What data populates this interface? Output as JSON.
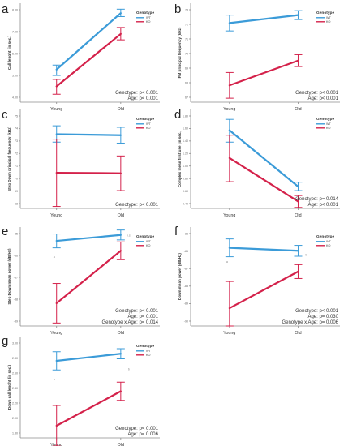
{
  "colors": {
    "WT": "#3b9bd8",
    "KO": "#d4214a"
  },
  "panels": [
    {
      "letter": "a",
      "ylabel": "Call lenght (in sec.)",
      "legend": {
        "title": "Genotype",
        "items": [
          "WT",
          "KO"
        ]
      },
      "stats": [
        "Genotype: p< 0.001",
        "Age: p< 0.001"
      ],
      "ticks": [
        "8.00",
        "7.00",
        "6.00",
        "5.00",
        "4.00"
      ],
      "sig": [],
      "chart_data": {
        "type": "line",
        "categories": [
          "Young",
          "Old"
        ],
        "ylim": [
          0,
          100
        ],
        "series": [
          {
            "name": "WT",
            "values": [
              33.0,
              90.0
            ],
            "err_low": [
              27.0,
              86.5
            ],
            "err_high": [
              37.5,
              94.0
            ]
          },
          {
            "name": "KO",
            "values": [
              16.0,
              69.0
            ],
            "err_low": [
              8.0,
              63.0
            ],
            "err_high": [
              23.0,
              75.5
            ]
          }
        ]
      }
    },
    {
      "letter": "b",
      "ylabel": "FM principal frequency (kHz)",
      "legend": {
        "title": "Genotype",
        "items": [
          "WT",
          "KO"
        ]
      },
      "stats": [
        "Genotype: p< 0.001",
        "Age: p< 0.001"
      ],
      "ticks": [
        "73",
        "72",
        "71",
        "70",
        "69",
        "68",
        "67"
      ],
      "sig": [],
      "chart_data": {
        "type": "line",
        "categories": [
          "Young",
          "Old"
        ],
        "ylim": [
          0,
          100
        ],
        "series": [
          {
            "name": "WT",
            "values": [
              80.0,
              88.0
            ],
            "err_low": [
              72.0,
              83.5
            ],
            "err_high": [
              88.0,
              92.5
            ]
          },
          {
            "name": "KO",
            "values": [
              17.0,
              42.0
            ],
            "err_low": [
              4.0,
              36.0
            ],
            "err_high": [
              30.0,
              48.0
            ]
          }
        ]
      }
    },
    {
      "letter": "c",
      "ylabel": "Step Down principal frequency (kHz)",
      "legend": {
        "title": "Genotype",
        "items": [
          "WT",
          "KO"
        ]
      },
      "stats": [
        "Genotype: p< 0.001"
      ],
      "ticks": [
        "75",
        "74",
        "73",
        "72",
        "71",
        "70",
        "69",
        "68"
      ],
      "sig": [],
      "chart_data": {
        "type": "line",
        "categories": [
          "Young",
          "Old"
        ],
        "ylim": [
          0,
          100
        ],
        "series": [
          {
            "name": "WT",
            "values": [
              75.0,
              74.0
            ],
            "err_low": [
              67.0,
              66.0
            ],
            "err_high": [
              83.5,
              82.0
            ]
          },
          {
            "name": "KO",
            "values": [
              36.0,
              35.5
            ],
            "err_low": [
              2.0,
              18.0
            ],
            "err_high": [
              70.0,
              53.0
            ]
          }
        ]
      }
    },
    {
      "letter": "d",
      "ylabel": "Complex mean first use (in sec.)",
      "legend": {
        "title": "Genotype",
        "items": [
          "WT",
          "KO"
        ]
      },
      "stats": [
        "Genotype: p= 0.014",
        "Age: p< 0.001"
      ],
      "ticks": [
        "1.80",
        "1.60",
        "1.40",
        "1.20",
        "1.00",
        "0.80",
        "0.60",
        "0.40"
      ],
      "sig": [],
      "chart_data": {
        "type": "line",
        "categories": [
          "Young",
          "Old"
        ],
        "ylim": [
          0,
          100
        ],
        "series": [
          {
            "name": "WT",
            "values": [
              79.0,
              22.0
            ],
            "err_low": [
              67.0,
              18.0
            ],
            "err_high": [
              90.0,
              26.5
            ]
          },
          {
            "name": "KO",
            "values": [
              51.0,
              7.0
            ],
            "err_low": [
              27.0,
              1.0
            ],
            "err_high": [
              74.0,
              13.0
            ]
          }
        ]
      }
    },
    {
      "letter": "e",
      "ylabel": "Step Down mean power (dB/Hz)",
      "legend": {
        "title": "Genotype",
        "items": [
          "WT",
          "KO"
        ]
      },
      "stats": [
        "Genotype: p< 0.001",
        "Age: p= 0.001",
        "Genotype x Age: p= 0.014"
      ],
      "ticks": [
        "-85",
        "-86",
        "-87",
        "-88",
        "-89"
      ],
      "sig": [
        {
          "cat": 0,
          "y": 69.0,
          "text": "a"
        },
        {
          "cat": 1,
          "y": 90.5,
          "text": "n.s."
        }
      ],
      "chart_data": {
        "type": "line",
        "categories": [
          "Young",
          "Old"
        ],
        "ylim": [
          0,
          100
        ],
        "series": [
          {
            "name": "WT",
            "values": [
              86.0,
              92.0
            ],
            "err_low": [
              79.0,
              87.0
            ],
            "err_high": [
              93.0,
              97.0
            ]
          },
          {
            "name": "KO",
            "values": [
              23.0,
              76.0
            ],
            "err_low": [
              3.0,
              67.0
            ],
            "err_high": [
              43.0,
              85.0
            ]
          }
        ]
      }
    },
    {
      "letter": "f",
      "ylabel": "Down mean power (dB/Hz)",
      "legend": {
        "title": "Genotype",
        "items": [
          "WT",
          "KO"
        ]
      },
      "stats": [
        "Genotype: p< 0.001",
        "Age: p= 0.030",
        "Genotype x Age: p= 0.006"
      ],
      "ticks": [
        "-85",
        "-86",
        "-87",
        "-88",
        "-89",
        "-90"
      ],
      "sig": [
        {
          "cat": 0,
          "y": 64.0,
          "text": "a"
        },
        {
          "cat": 1,
          "y": 71.0,
          "text": "b"
        }
      ],
      "chart_data": {
        "type": "line",
        "categories": [
          "Young",
          "Old"
        ],
        "ylim": [
          0,
          100
        ],
        "series": [
          {
            "name": "WT",
            "values": [
              79.0,
              76.0
            ],
            "err_low": [
              70.0,
              70.5
            ],
            "err_high": [
              88.0,
              81.5
            ]
          },
          {
            "name": "KO",
            "values": [
              18.0,
              55.0
            ],
            "err_low": [
              0.0,
              48.0
            ],
            "err_high": [
              45.0,
              62.0
            ]
          }
        ]
      }
    },
    {
      "letter": "g",
      "ylabel": "Down call lenght (in sec.)",
      "legend": {
        "title": "Genotype",
        "items": [
          "WT",
          "KO"
        ]
      },
      "stats": [
        "Genotype: p< 0.001",
        "Age: p= 0.006"
      ],
      "ticks": [
        "3.00",
        "2.80",
        "2.60",
        "2.40",
        "2.20",
        "2.00",
        "1.80"
      ],
      "sig": [
        {
          "cat": 0,
          "y": 57.0,
          "text": "a"
        },
        {
          "cat": 1,
          "y": 67.0,
          "text": "b"
        }
      ],
      "chart_data": {
        "type": "line",
        "categories": [
          "Young",
          "Old"
        ],
        "ylim": [
          0,
          100
        ],
        "series": [
          {
            "name": "WT",
            "values": [
              76.0,
              83.0
            ],
            "err_low": [
              67.0,
              78.0
            ],
            "err_high": [
              85.0,
              88.0
            ]
          },
          {
            "name": "KO",
            "values": [
              12.0,
              46.0
            ],
            "err_low": [
              -8.0,
              37.0
            ],
            "err_high": [
              32.0,
              55.0
            ]
          }
        ]
      }
    }
  ]
}
